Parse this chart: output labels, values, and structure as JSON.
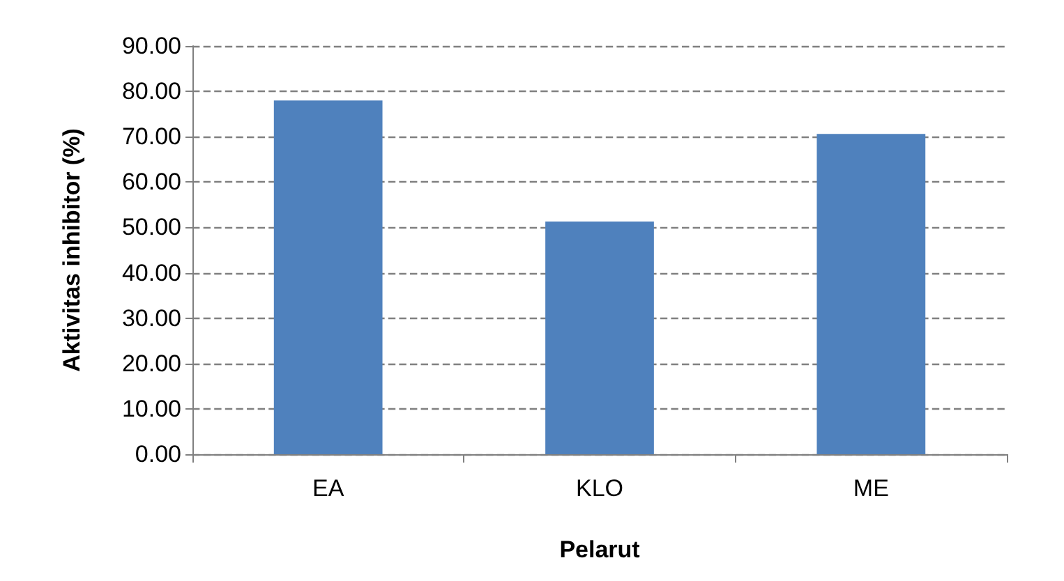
{
  "chart_data": {
    "type": "bar",
    "xlabel": "Pelarut",
    "ylabel": "Aktivitas inhibitor (%)",
    "categories": [
      "EA",
      "KLO",
      "ME"
    ],
    "values": [
      78.0,
      51.3,
      70.6
    ],
    "color": "#4f81bd",
    "ylim": [
      0,
      90
    ],
    "yticks": [
      {
        "value": 0,
        "label": "0.00"
      },
      {
        "value": 10,
        "label": "10.00"
      },
      {
        "value": 20,
        "label": "20.00"
      },
      {
        "value": 30,
        "label": "30.00"
      },
      {
        "value": 40,
        "label": "40.00"
      },
      {
        "value": 50,
        "label": "50.00"
      },
      {
        "value": 60,
        "label": "60.00"
      },
      {
        "value": 70,
        "label": "70.00"
      },
      {
        "value": 80,
        "label": "80.00"
      },
      {
        "value": 90,
        "label": "90.00"
      }
    ],
    "grid": "y"
  }
}
